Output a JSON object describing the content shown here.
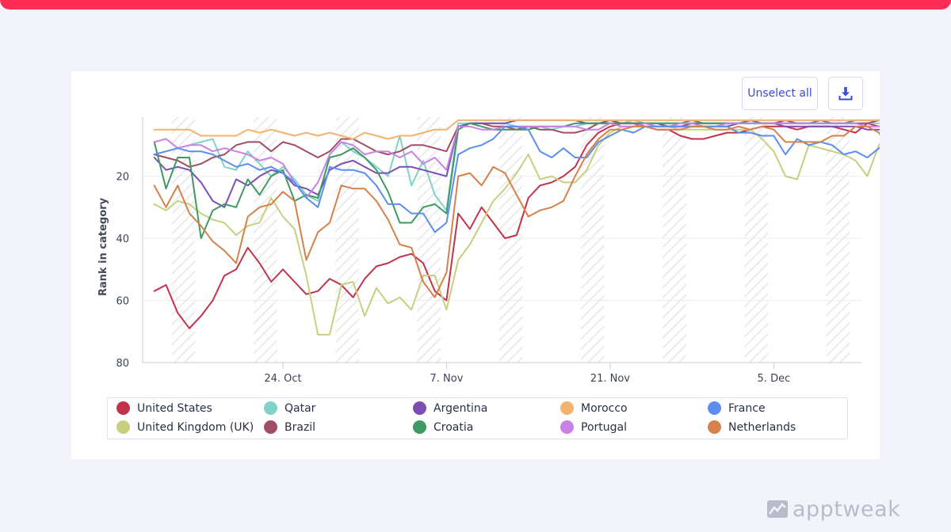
{
  "brand": {
    "name": "apptweak",
    "logo_icon": "apptweak-logo-icon",
    "accent": "#ff2d55"
  },
  "toolbar": {
    "unselect_label": "Unselect all",
    "download_icon": "download-icon"
  },
  "chart_data": {
    "type": "line",
    "title": "",
    "xlabel": "",
    "ylabel": "Rank in category",
    "ylim": [
      80,
      1
    ],
    "y_reversed": true,
    "yticks": [
      20,
      40,
      60,
      80
    ],
    "x_tick_labels": [
      "24. Oct",
      "7. Nov",
      "21. Nov",
      "5. Dec"
    ],
    "x_tick_days": [
      24,
      38,
      52,
      66
    ],
    "x_day_range": [
      12,
      73.5
    ],
    "x_start_day": 13,
    "weekend_hatched": true,
    "grid": "horizontal",
    "legend_position": "bottom",
    "series": [
      {
        "name": "United States",
        "color": "#c0334a",
        "values": [
          57,
          55,
          64,
          69,
          65,
          60,
          52,
          50,
          43,
          48,
          54,
          50,
          54,
          58,
          57,
          53,
          55,
          59,
          53,
          49,
          48,
          46,
          45,
          48,
          57,
          60,
          32,
          37,
          30,
          35,
          40,
          39,
          27,
          23,
          22,
          20,
          17,
          10,
          6,
          4,
          3,
          3,
          4,
          5,
          5,
          7,
          8,
          8,
          7,
          6,
          6,
          5,
          4,
          4,
          4,
          5,
          4,
          4,
          4,
          5,
          6,
          3,
          4,
          4,
          4,
          5,
          4,
          4,
          5,
          6,
          5,
          4,
          4
        ]
      },
      {
        "name": "United Kingdom (UK)",
        "color": "#c8cf7e",
        "values": [
          29,
          31,
          28,
          29,
          32,
          34,
          35,
          39,
          36,
          35,
          27,
          33,
          37,
          52,
          71,
          71,
          55,
          54,
          65,
          56,
          61,
          59,
          63,
          52,
          52,
          63,
          47,
          42,
          35,
          28,
          24,
          19,
          13,
          21,
          20,
          22,
          22,
          18,
          10,
          6,
          4,
          4,
          4,
          4,
          4,
          5,
          5,
          5,
          5,
          5,
          5,
          5,
          8,
          12,
          20,
          21,
          10,
          11,
          12,
          13,
          15,
          20,
          10,
          4,
          3,
          4,
          4,
          4,
          3,
          3,
          11,
          10,
          10
        ]
      },
      {
        "name": "Qatar",
        "color": "#7fd3c8",
        "values": [
          13,
          12,
          11,
          10,
          9,
          8,
          17,
          18,
          12,
          16,
          20,
          17,
          21,
          26,
          28,
          13,
          9,
          12,
          14,
          17,
          20,
          7,
          23,
          15,
          26,
          31,
          3,
          3,
          3,
          3,
          3,
          4,
          4,
          4,
          5,
          4,
          4,
          3,
          3,
          3,
          3,
          2,
          3,
          3,
          3,
          3,
          3,
          3,
          3,
          3,
          3,
          3,
          3,
          3,
          3,
          3,
          3,
          3,
          3,
          3,
          3,
          3,
          3,
          3,
          3,
          3,
          3,
          3,
          3,
          3,
          3,
          3,
          3
        ]
      },
      {
        "name": "Brazil",
        "color": "#a24d65",
        "values": [
          13,
          14,
          15,
          17,
          16,
          14,
          13,
          10,
          9,
          9,
          12,
          9,
          10,
          12,
          14,
          12,
          8,
          8,
          10,
          12,
          13,
          12,
          10,
          10,
          11,
          12,
          4,
          3,
          3,
          4,
          4,
          5,
          4,
          5,
          5,
          6,
          6,
          5,
          3,
          2,
          3,
          3,
          3,
          4,
          4,
          4,
          3,
          3,
          3,
          3,
          3,
          2,
          3,
          3,
          2,
          3,
          3,
          3,
          3,
          3,
          3,
          3,
          2,
          3,
          3,
          3,
          3,
          3,
          4,
          3,
          3,
          3,
          4
        ]
      },
      {
        "name": "Argentina",
        "color": "#7d4eb2",
        "values": [
          14,
          18,
          17,
          18,
          22,
          28,
          30,
          21,
          23,
          20,
          18,
          19,
          23,
          24,
          26,
          18,
          16,
          15,
          17,
          19,
          19,
          17,
          17,
          18,
          19,
          20,
          4,
          3,
          3,
          3,
          3,
          2,
          2,
          2,
          2,
          2,
          2,
          3,
          3,
          3,
          3,
          3,
          3,
          3,
          4,
          4,
          4,
          4,
          4,
          4,
          3,
          3,
          3,
          3,
          4,
          4,
          4,
          4,
          4,
          4,
          4,
          5,
          5,
          5,
          5,
          4,
          4,
          4,
          4,
          4,
          4,
          4,
          5
        ]
      },
      {
        "name": "Croatia",
        "color": "#3e9a62",
        "values": [
          9,
          24,
          14,
          14,
          40,
          31,
          29,
          30,
          21,
          26,
          20,
          18,
          28,
          26,
          27,
          14,
          13,
          11,
          14,
          18,
          25,
          35,
          35,
          30,
          29,
          32,
          5,
          3,
          4,
          5,
          5,
          5,
          5,
          4,
          4,
          4,
          3,
          3,
          3,
          3,
          3,
          3,
          3,
          3,
          3,
          3,
          2,
          3,
          3,
          3,
          3,
          2,
          3,
          3,
          3,
          3,
          3,
          2,
          3,
          3,
          2,
          2,
          2,
          3,
          3,
          3,
          3,
          2,
          3,
          4,
          3,
          3,
          3
        ]
      },
      {
        "name": "Morocco",
        "color": "#f2b36f",
        "values": [
          5,
          5,
          5,
          5,
          7,
          7,
          7,
          7,
          5,
          6,
          5,
          6,
          7,
          6,
          7,
          6,
          7,
          8,
          6,
          7,
          8,
          7,
          7,
          6,
          5,
          5,
          2,
          2,
          2,
          2,
          2,
          2,
          2,
          2,
          2,
          2,
          2,
          2,
          2,
          2,
          2,
          2,
          2,
          2,
          2,
          2,
          2,
          2,
          2,
          2,
          2,
          2,
          2,
          2,
          2,
          2,
          2,
          2,
          2,
          2,
          2,
          2,
          2,
          2,
          2,
          2,
          2,
          2,
          2,
          2,
          2,
          2,
          2
        ]
      },
      {
        "name": "Portugal",
        "color": "#c982e3",
        "values": [
          9,
          8,
          11,
          10,
          10,
          12,
          11,
          12,
          13,
          15,
          14,
          16,
          22,
          27,
          22,
          13,
          9,
          10,
          13,
          12,
          12,
          14,
          12,
          16,
          14,
          18,
          4,
          4,
          5,
          5,
          4,
          4,
          4,
          4,
          4,
          4,
          4,
          5,
          5,
          3,
          4,
          4,
          3,
          4,
          4,
          3,
          3,
          4,
          4,
          3,
          3,
          3,
          3,
          3,
          3,
          3,
          3,
          3,
          3,
          3,
          3,
          4,
          4,
          4,
          4,
          4,
          4,
          4,
          4,
          4,
          4,
          4,
          4
        ]
      },
      {
        "name": "France",
        "color": "#5c8ef0",
        "values": [
          13,
          12,
          11,
          12,
          12,
          13,
          15,
          17,
          16,
          18,
          17,
          19,
          22,
          27,
          30,
          17,
          18,
          18,
          19,
          23,
          29,
          29,
          32,
          32,
          38,
          35,
          13,
          11,
          10,
          8,
          4,
          4,
          5,
          12,
          14,
          11,
          14,
          14,
          9,
          7,
          5,
          6,
          4,
          4,
          4,
          4,
          4,
          4,
          4,
          4,
          6,
          6,
          7,
          7,
          13,
          8,
          10,
          9,
          10,
          13,
          12,
          14,
          11,
          9,
          8,
          6,
          3,
          4,
          5,
          6,
          5,
          5,
          5
        ]
      },
      {
        "name": "Netherlands",
        "color": "#d5814a",
        "values": [
          23,
          30,
          23,
          32,
          36,
          41,
          44,
          48,
          33,
          30,
          29,
          25,
          28,
          47,
          38,
          35,
          23,
          24,
          24,
          28,
          34,
          42,
          43,
          54,
          59,
          51,
          20,
          19,
          23,
          17,
          19,
          26,
          33,
          31,
          30,
          28,
          20,
          13,
          8,
          5,
          5,
          4,
          4,
          5,
          5,
          5,
          4,
          4,
          5,
          5,
          4,
          5,
          4,
          5,
          9,
          9,
          9,
          9,
          7,
          7,
          4,
          4,
          6,
          13,
          14,
          9,
          6,
          4,
          3,
          3,
          5,
          6,
          9
        ]
      }
    ]
  },
  "legend": {
    "items": [
      {
        "label": "United States",
        "color": "#c0334a"
      },
      {
        "label": "Qatar",
        "color": "#7fd3c8"
      },
      {
        "label": "Argentina",
        "color": "#7d4eb2"
      },
      {
        "label": "Morocco",
        "color": "#f2b36f"
      },
      {
        "label": "France",
        "color": "#5c8ef0"
      },
      {
        "label": "United Kingdom (UK)",
        "color": "#c8cf7e"
      },
      {
        "label": "Brazil",
        "color": "#a24d65"
      },
      {
        "label": "Croatia",
        "color": "#3e9a62"
      },
      {
        "label": "Portugal",
        "color": "#c982e3"
      },
      {
        "label": "Netherlands",
        "color": "#d5814a"
      }
    ]
  }
}
